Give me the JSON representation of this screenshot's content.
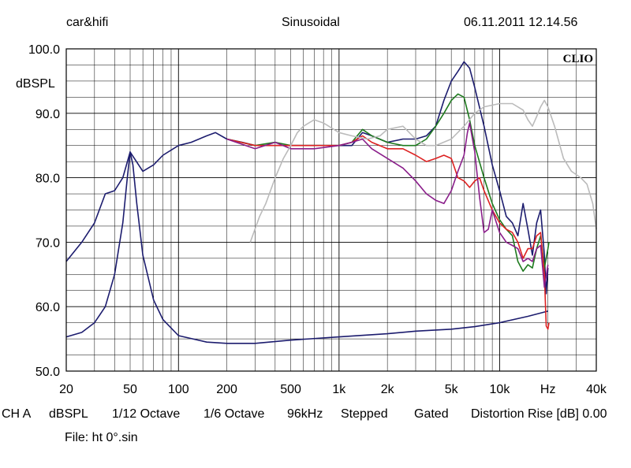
{
  "header": {
    "left": "car&hifi",
    "center": "Sinusoidal",
    "right": "06.11.2011 12.14.56"
  },
  "logo": "CLIO",
  "status_row": [
    "CH A",
    "dBSPL",
    "1/12 Octave",
    "1/6 Octave",
    "96kHz",
    "Stepped",
    "Gated",
    "Distortion Rise [dB] 0.00"
  ],
  "file_label": "File: ht 0°.sin",
  "chart_data": {
    "type": "line",
    "xscale": "log",
    "xlim": [
      20,
      40000
    ],
    "ylim": [
      50,
      100
    ],
    "ylabel": "dBSPL",
    "xlabel": "Hz",
    "grid": true,
    "x_ticks": [
      {
        "v": 20,
        "label": "20"
      },
      {
        "v": 50,
        "label": "50"
      },
      {
        "v": 100,
        "label": "100"
      },
      {
        "v": 200,
        "label": "200"
      },
      {
        "v": 500,
        "label": "500"
      },
      {
        "v": 1000,
        "label": "1k"
      },
      {
        "v": 2000,
        "label": "2k"
      },
      {
        "v": 5000,
        "label": "5k"
      },
      {
        "v": 10000,
        "label": "10k"
      },
      {
        "v": 20000,
        "label": "Hz"
      },
      {
        "v": 40000,
        "label": "40k"
      }
    ],
    "y_ticks": [
      {
        "v": 100,
        "label": "100.0"
      },
      {
        "v": 90,
        "label": "90.0"
      },
      {
        "v": 80,
        "label": "80.0"
      },
      {
        "v": 70,
        "label": "70.0"
      },
      {
        "v": 60,
        "label": "60.0"
      },
      {
        "v": 50,
        "label": "50.0"
      }
    ],
    "series": [
      {
        "color": "#1c1c6e",
        "points": [
          [
            20,
            67
          ],
          [
            25,
            70
          ],
          [
            30,
            73
          ],
          [
            35,
            77.5
          ],
          [
            40,
            78
          ],
          [
            45,
            80
          ],
          [
            50,
            84
          ],
          [
            60,
            81
          ],
          [
            70,
            82
          ],
          [
            80,
            83.5
          ],
          [
            100,
            85
          ],
          [
            120,
            85.5
          ],
          [
            150,
            86.5
          ],
          [
            170,
            87
          ],
          [
            200,
            86
          ],
          [
            250,
            85.5
          ],
          [
            300,
            85
          ],
          [
            400,
            85
          ],
          [
            500,
            85
          ],
          [
            600,
            85
          ],
          [
            700,
            85
          ],
          [
            800,
            85
          ],
          [
            900,
            85
          ],
          [
            1000,
            85
          ],
          [
            1200,
            85
          ],
          [
            1400,
            87
          ],
          [
            1600,
            86.5
          ],
          [
            2000,
            85.5
          ],
          [
            2500,
            86
          ],
          [
            3000,
            86
          ],
          [
            3500,
            86.5
          ],
          [
            4000,
            88
          ],
          [
            4500,
            92
          ],
          [
            5000,
            95
          ],
          [
            5500,
            96.5
          ],
          [
            6000,
            98
          ],
          [
            6500,
            97
          ],
          [
            7000,
            94
          ],
          [
            8000,
            88
          ],
          [
            9000,
            82
          ],
          [
            10000,
            78
          ],
          [
            11000,
            74
          ],
          [
            12000,
            73
          ],
          [
            13000,
            71
          ],
          [
            14000,
            76
          ],
          [
            15000,
            72
          ],
          [
            16000,
            68
          ],
          [
            17000,
            73
          ],
          [
            18000,
            75
          ],
          [
            19000,
            68
          ],
          [
            19500,
            62
          ],
          [
            20000,
            66
          ]
        ]
      },
      {
        "color": "#1c1c6e",
        "points": [
          [
            20,
            55.3
          ],
          [
            25,
            56
          ],
          [
            30,
            57.5
          ],
          [
            35,
            60
          ],
          [
            40,
            65
          ],
          [
            45,
            73
          ],
          [
            48,
            80
          ],
          [
            50,
            84
          ],
          [
            52,
            82
          ],
          [
            55,
            76
          ],
          [
            60,
            68
          ],
          [
            70,
            61
          ],
          [
            80,
            58
          ],
          [
            100,
            55.5
          ],
          [
            150,
            54.5
          ],
          [
            200,
            54.3
          ],
          [
            300,
            54.3
          ],
          [
            500,
            54.8
          ],
          [
            1000,
            55.3
          ],
          [
            2000,
            55.8
          ],
          [
            3000,
            56.2
          ],
          [
            5000,
            56.5
          ],
          [
            7000,
            56.9
          ],
          [
            10000,
            57.5
          ],
          [
            15000,
            58.5
          ],
          [
            20000,
            59.3
          ]
        ]
      },
      {
        "color": "#1e7a1e",
        "points": [
          [
            200,
            86
          ],
          [
            300,
            85
          ],
          [
            400,
            85.5
          ],
          [
            500,
            85
          ],
          [
            700,
            85
          ],
          [
            900,
            85
          ],
          [
            1000,
            85
          ],
          [
            1200,
            85.5
          ],
          [
            1400,
            87.5
          ],
          [
            1600,
            86.5
          ],
          [
            2000,
            85.5
          ],
          [
            2500,
            85
          ],
          [
            3000,
            85
          ],
          [
            3500,
            86
          ],
          [
            4000,
            88
          ],
          [
            4500,
            90
          ],
          [
            5000,
            92
          ],
          [
            5500,
            93
          ],
          [
            6000,
            92.5
          ],
          [
            6500,
            89
          ],
          [
            7000,
            85
          ],
          [
            8000,
            80
          ],
          [
            9000,
            76
          ],
          [
            10000,
            73.5
          ],
          [
            11000,
            72
          ],
          [
            12000,
            71
          ],
          [
            13000,
            67
          ],
          [
            14000,
            65.5
          ],
          [
            15000,
            66.5
          ],
          [
            16000,
            66
          ],
          [
            17000,
            69
          ],
          [
            18000,
            71
          ],
          [
            19000,
            66
          ],
          [
            20000,
            69
          ],
          [
            20300,
            70
          ]
        ]
      },
      {
        "color": "#dd2222",
        "points": [
          [
            200,
            86
          ],
          [
            300,
            85
          ],
          [
            400,
            85
          ],
          [
            500,
            85
          ],
          [
            700,
            85
          ],
          [
            1000,
            85
          ],
          [
            1200,
            85.5
          ],
          [
            1400,
            86.5
          ],
          [
            1600,
            85.5
          ],
          [
            2000,
            84.5
          ],
          [
            2500,
            84.5
          ],
          [
            3000,
            83.5
          ],
          [
            3500,
            82.5
          ],
          [
            4000,
            83
          ],
          [
            4500,
            83.5
          ],
          [
            5000,
            83
          ],
          [
            5500,
            80
          ],
          [
            6000,
            79.5
          ],
          [
            6500,
            78.5
          ],
          [
            7000,
            79.5
          ],
          [
            7500,
            80
          ],
          [
            8000,
            78
          ],
          [
            9000,
            75
          ],
          [
            10000,
            73
          ],
          [
            11000,
            72
          ],
          [
            12000,
            71.5
          ],
          [
            13000,
            70
          ],
          [
            14000,
            67.5
          ],
          [
            15000,
            69
          ],
          [
            16000,
            69
          ],
          [
            17000,
            71
          ],
          [
            18000,
            71.5
          ],
          [
            19000,
            65
          ],
          [
            19500,
            57
          ],
          [
            20000,
            56.5
          ],
          [
            20300,
            57.5
          ]
        ]
      },
      {
        "color": "#8a1e8a",
        "points": [
          [
            200,
            86
          ],
          [
            300,
            84.5
          ],
          [
            400,
            85.5
          ],
          [
            500,
            84.5
          ],
          [
            700,
            84.5
          ],
          [
            1000,
            85
          ],
          [
            1200,
            85.5
          ],
          [
            1400,
            86
          ],
          [
            1600,
            84.5
          ],
          [
            2000,
            83
          ],
          [
            2500,
            81.5
          ],
          [
            3000,
            79.5
          ],
          [
            3500,
            77.5
          ],
          [
            4000,
            76.5
          ],
          [
            4500,
            76
          ],
          [
            5000,
            78
          ],
          [
            5500,
            81
          ],
          [
            6000,
            83.5
          ],
          [
            6300,
            87
          ],
          [
            6500,
            88.5
          ],
          [
            7000,
            84
          ],
          [
            7500,
            77
          ],
          [
            8000,
            71.5
          ],
          [
            8500,
            72
          ],
          [
            9000,
            75
          ],
          [
            10000,
            71.5
          ],
          [
            11000,
            70
          ],
          [
            12000,
            69.5
          ],
          [
            13000,
            69
          ],
          [
            14000,
            67
          ],
          [
            15000,
            67.5
          ],
          [
            16000,
            67
          ],
          [
            17000,
            69
          ],
          [
            18000,
            69.5
          ],
          [
            19000,
            63
          ],
          [
            20000,
            66.5
          ]
        ]
      },
      {
        "color": "#bbbbbb",
        "points": [
          [
            280,
            70
          ],
          [
            320,
            74
          ],
          [
            350,
            76
          ],
          [
            400,
            80
          ],
          [
            450,
            83
          ],
          [
            500,
            85
          ],
          [
            550,
            87
          ],
          [
            600,
            88
          ],
          [
            700,
            89
          ],
          [
            800,
            88.5
          ],
          [
            1000,
            87
          ],
          [
            1200,
            86.5
          ],
          [
            1500,
            86
          ],
          [
            1800,
            86.5
          ],
          [
            2000,
            87.5
          ],
          [
            2500,
            88
          ],
          [
            3000,
            86
          ],
          [
            3500,
            85
          ],
          [
            4000,
            85
          ],
          [
            5000,
            86
          ],
          [
            6000,
            88
          ],
          [
            7000,
            90
          ],
          [
            8000,
            91
          ],
          [
            10000,
            91.5
          ],
          [
            12000,
            91.5
          ],
          [
            14000,
            90.5
          ],
          [
            15000,
            89
          ],
          [
            16000,
            88
          ],
          [
            17000,
            89.5
          ],
          [
            18000,
            91
          ],
          [
            19000,
            92
          ],
          [
            20000,
            91
          ],
          [
            22000,
            88
          ],
          [
            25000,
            83
          ],
          [
            28000,
            81
          ],
          [
            32000,
            80
          ],
          [
            35000,
            79
          ],
          [
            38000,
            76
          ],
          [
            40000,
            72
          ]
        ]
      }
    ]
  }
}
